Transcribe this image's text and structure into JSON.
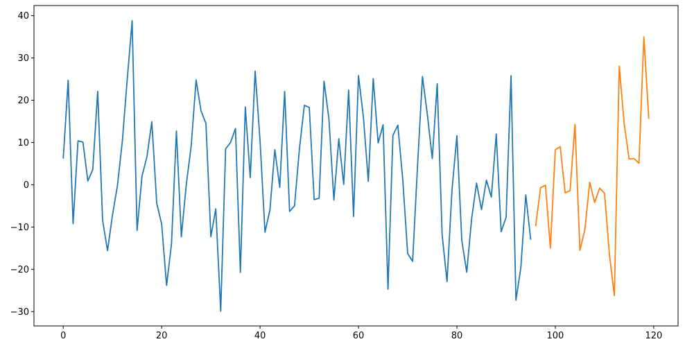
{
  "chart_data": {
    "type": "line",
    "title": "",
    "xlabel": "",
    "ylabel": "",
    "xlim": [
      -5.95,
      124.95
    ],
    "ylim": [
      -33.4,
      42.4
    ],
    "xticks": [
      0,
      20,
      40,
      60,
      80,
      100,
      120
    ],
    "yticks": [
      -30,
      -20,
      -10,
      0,
      10,
      20,
      30,
      40
    ],
    "xtick_labels": [
      "0",
      "20",
      "40",
      "60",
      "80",
      "100",
      "120"
    ],
    "ytick_labels": [
      "−30",
      "−20",
      "−10",
      "0",
      "10",
      "20",
      "30",
      "40"
    ],
    "grid": false,
    "legend": "none",
    "series": [
      {
        "color": "#1f77b4",
        "x_start": 0,
        "values": [
          6.2,
          24.7,
          -9.2,
          10.4,
          10.1,
          0.9,
          3.6,
          22.1,
          -8.4,
          -15.6,
          -7.2,
          -0.3,
          10.2,
          24.9,
          38.8,
          -10.8,
          2.0,
          6.6,
          14.9,
          -4.4,
          -9.3,
          -23.8,
          -14.0,
          12.7,
          -12.3,
          0.0,
          9.2,
          24.8,
          17.5,
          14.5,
          -12.3,
          -5.7,
          -29.9,
          8.5,
          10.0,
          13.3,
          -20.7,
          18.4,
          1.7,
          26.9,
          10.3,
          -11.2,
          -6.0,
          8.3,
          -0.6,
          22.1,
          -6.3,
          -5.0,
          8.5,
          18.8,
          18.3,
          -3.5,
          -3.2,
          24.5,
          15.5,
          -3.6,
          10.9,
          0.1,
          22.4,
          -7.5,
          25.8,
          16.0,
          0.8,
          25.1,
          9.9,
          14.2,
          -24.7,
          11.7,
          14.1,
          1.2,
          -16.3,
          -18.1,
          4.4,
          25.6,
          16.6,
          6.2,
          23.9,
          -11.8,
          -22.9,
          -1.3,
          11.6,
          -13.2,
          -20.7,
          -8.0,
          0.4,
          -5.9,
          1.1,
          -2.9,
          12.0,
          -11.1,
          -7.7,
          25.8,
          -27.3,
          -19.6,
          -2.4,
          -13.0
        ]
      },
      {
        "color": "#ff7f0e",
        "x_start": 96,
        "values": [
          -9.8,
          -0.7,
          -0.1,
          -15.0,
          8.3,
          9.0,
          -1.9,
          -1.4,
          14.3,
          -15.5,
          -10.7,
          0.6,
          -4.2,
          -0.8,
          -2.0,
          -16.5,
          -26.2,
          28.1,
          14.4,
          6.1,
          6.2,
          5.1,
          35.0,
          15.6
        ]
      }
    ]
  }
}
